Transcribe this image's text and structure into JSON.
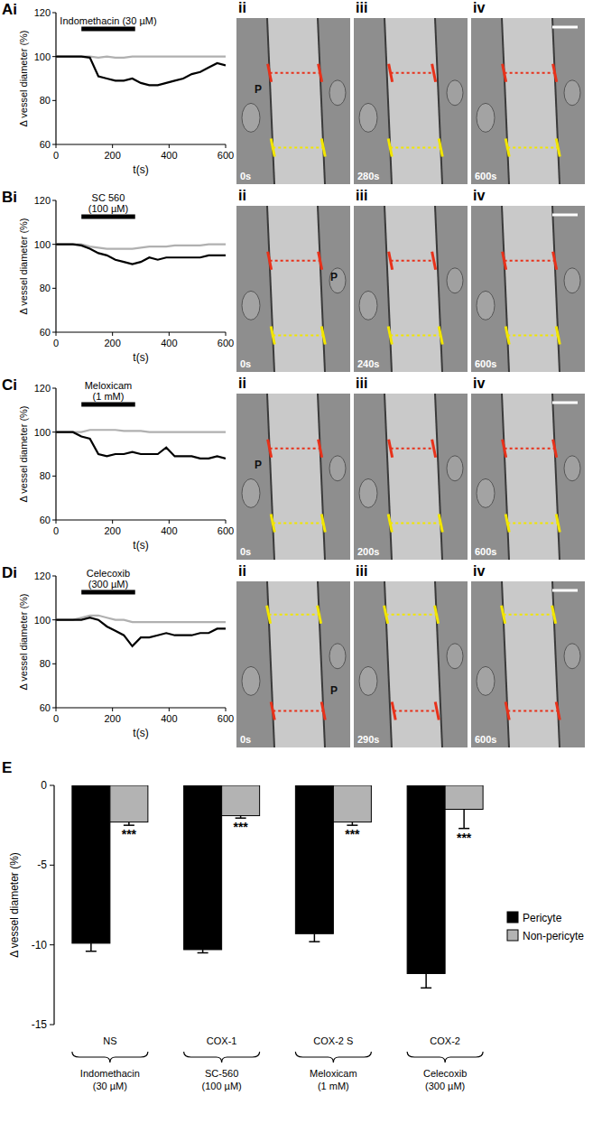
{
  "chart_data": [
    {
      "type": "line",
      "x_label": "t(s)",
      "y_label": "Δ vessel diameter (%)",
      "x": [
        0,
        30,
        60,
        90,
        120,
        150,
        180,
        210,
        240,
        270,
        300,
        330,
        360,
        390,
        420,
        450,
        480,
        510,
        540,
        570,
        600
      ],
      "xlim": [
        0,
        600
      ],
      "xticks": [
        0,
        200,
        400,
        600
      ],
      "ylim": [
        60,
        120
      ],
      "yticks": [
        60,
        80,
        100,
        120
      ],
      "series": [
        {
          "color": "#000000",
          "values": [
            100,
            100,
            100,
            100,
            99.5,
            91,
            90,
            89,
            89,
            90,
            88,
            87,
            87,
            88,
            89,
            90,
            92,
            93,
            95,
            97,
            96
          ]
        },
        {
          "color": "#b0b0b0",
          "values": [
            100,
            100,
            100,
            100,
            100,
            99.5,
            100,
            99.5,
            99.5,
            100,
            100,
            100,
            100,
            100,
            100,
            100,
            100,
            100,
            100,
            100,
            100
          ]
        }
      ],
      "annotations": [
        {
          "text": [
            "Indomethacin (30 µM)"
          ],
          "x": [
            90,
            280
          ]
        }
      ]
    },
    {
      "type": "line",
      "x_label": "t(s)",
      "y_label": "Δ vessel diameter (%)",
      "x": [
        0,
        30,
        60,
        90,
        120,
        150,
        180,
        210,
        240,
        270,
        300,
        330,
        360,
        390,
        420,
        450,
        480,
        510,
        540,
        570,
        600
      ],
      "xlim": [
        0,
        600
      ],
      "xticks": [
        0,
        200,
        400,
        600
      ],
      "ylim": [
        60,
        120
      ],
      "yticks": [
        60,
        80,
        100,
        120
      ],
      "series": [
        {
          "color": "#000000",
          "values": [
            100,
            100,
            100,
            99.5,
            98,
            96,
            95,
            93,
            92,
            91,
            92,
            94,
            93,
            94,
            94,
            94,
            94,
            94,
            95,
            95,
            95
          ]
        },
        {
          "color": "#b0b0b0",
          "values": [
            100,
            100,
            100,
            100,
            99,
            98.5,
            98,
            98,
            98,
            98,
            98.5,
            99,
            99,
            99,
            99.5,
            99.5,
            99.5,
            99.5,
            100,
            100,
            100
          ]
        }
      ],
      "annotations": [
        {
          "text": [
            "SC 560",
            "(100 µM)"
          ],
          "x": [
            90,
            280
          ]
        }
      ]
    },
    {
      "type": "line",
      "x_label": "t(s)",
      "y_label": "Δ vessel diameter (%)",
      "x": [
        0,
        30,
        60,
        90,
        120,
        150,
        180,
        210,
        240,
        270,
        300,
        330,
        360,
        390,
        420,
        450,
        480,
        510,
        540,
        570,
        600
      ],
      "xlim": [
        0,
        600
      ],
      "xticks": [
        0,
        200,
        400,
        600
      ],
      "ylim": [
        60,
        120
      ],
      "yticks": [
        60,
        80,
        100,
        120
      ],
      "series": [
        {
          "color": "#000000",
          "values": [
            100,
            100,
            100,
            98,
            97,
            90,
            89,
            90,
            90,
            91,
            90,
            90,
            90,
            93,
            89,
            89,
            89,
            88,
            88,
            89,
            88
          ]
        },
        {
          "color": "#b0b0b0",
          "values": [
            100,
            100,
            100,
            100,
            101,
            101,
            101,
            101,
            100.5,
            100.5,
            100.5,
            100,
            100,
            100,
            100,
            100,
            100,
            100,
            100,
            100,
            100
          ]
        }
      ],
      "annotations": [
        {
          "text": [
            "Meloxicam",
            "(1 mM)"
          ],
          "x": [
            90,
            280
          ]
        }
      ]
    },
    {
      "type": "line",
      "x_label": "t(s)",
      "y_label": "Δ vessel diameter (%)",
      "x": [
        0,
        30,
        60,
        90,
        120,
        150,
        180,
        210,
        240,
        270,
        300,
        330,
        360,
        390,
        420,
        450,
        480,
        510,
        540,
        570,
        600
      ],
      "xlim": [
        0,
        600
      ],
      "xticks": [
        0,
        200,
        400,
        600
      ],
      "ylim": [
        60,
        120
      ],
      "yticks": [
        60,
        80,
        100,
        120
      ],
      "series": [
        {
          "color": "#000000",
          "values": [
            100,
            100,
            100,
            100,
            101,
            100,
            97,
            95,
            93,
            88,
            92,
            92,
            93,
            94,
            93,
            93,
            93,
            94,
            94,
            96,
            96
          ]
        },
        {
          "color": "#b0b0b0",
          "values": [
            100,
            100,
            100,
            101,
            102,
            102,
            101,
            100,
            100,
            99,
            99,
            99,
            99,
            99,
            99,
            99,
            99,
            99,
            99,
            99,
            99
          ]
        }
      ],
      "annotations": [
        {
          "text": [
            "Celecoxib",
            "(300 µM)"
          ],
          "x": [
            90,
            280
          ]
        }
      ]
    },
    {
      "type": "bar",
      "y_label": "Δ vessel diameter (%)",
      "categories": [
        "Indomethacin (30 µM)",
        "SC-560 (100 µM)",
        "Meloxicam (1 mM)",
        "Celecoxib (300 µM)"
      ],
      "category_groups": [
        "NS",
        "COX-1",
        "COX-2 S",
        "COX-2"
      ],
      "ylim": [
        -15,
        0
      ],
      "yticks": [
        -15,
        -10,
        -5,
        0
      ],
      "legend": "right",
      "series": [
        {
          "name": "Pericyte",
          "color": "#000000",
          "values": [
            -9.9,
            -10.3,
            -9.3,
            -11.8
          ],
          "errors": [
            0.5,
            0.2,
            0.5,
            0.9
          ]
        },
        {
          "name": "Non-pericyte",
          "color": "#b3b3b3",
          "values": [
            -2.3,
            -1.9,
            -2.3,
            -1.5
          ],
          "errors": [
            0.2,
            0.15,
            0.2,
            1.2
          ],
          "significance": [
            "***",
            "***",
            "***",
            "***"
          ]
        }
      ]
    }
  ],
  "figure": {
    "panel_labels": [
      "Ai",
      "Bi",
      "Ci",
      "Di",
      "E"
    ],
    "image_panels": [
      {
        "labels": [
          "ii",
          "iii",
          "iv"
        ],
        "times": [
          "0s",
          "280s",
          "600s"
        ],
        "pericyte": "P"
      },
      {
        "labels": [
          "ii",
          "iii",
          "iv"
        ],
        "times": [
          "0s",
          "240s",
          "600s"
        ],
        "pericyte": "P"
      },
      {
        "labels": [
          "ii",
          "iii",
          "iv"
        ],
        "times": [
          "0s",
          "200s",
          "600s"
        ],
        "pericyte": "P"
      },
      {
        "labels": [
          "ii",
          "iii",
          "iv"
        ],
        "times": [
          "0s",
          "290s",
          "600s"
        ],
        "pericyte": "P"
      }
    ]
  }
}
